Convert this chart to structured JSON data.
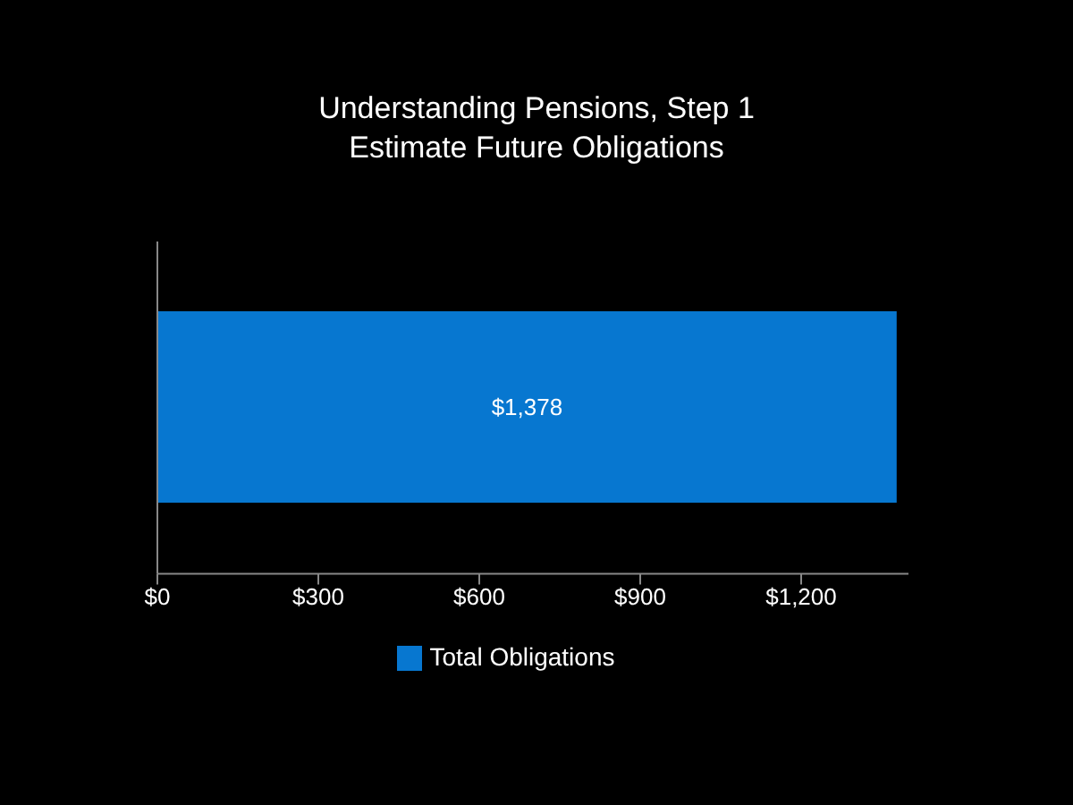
{
  "chart_data": {
    "type": "bar",
    "orientation": "horizontal",
    "title": "Understanding Pensions, Step 1",
    "subtitle": "Estimate Future Obligations",
    "categories": [
      null
    ],
    "series": [
      {
        "name": "Total Obligations",
        "color": "#0777d0",
        "values": [
          1378
        ],
        "value_labels": [
          "$1,378"
        ]
      }
    ],
    "xlim": [
      0,
      1400
    ],
    "xticks": [
      {
        "value": 0,
        "label": "$0"
      },
      {
        "value": 300,
        "label": "$300"
      },
      {
        "value": 600,
        "label": "$600"
      },
      {
        "value": 900,
        "label": "$900"
      },
      {
        "value": 1200,
        "label": "$1,200"
      }
    ],
    "grid": false,
    "legend": "bottom"
  }
}
